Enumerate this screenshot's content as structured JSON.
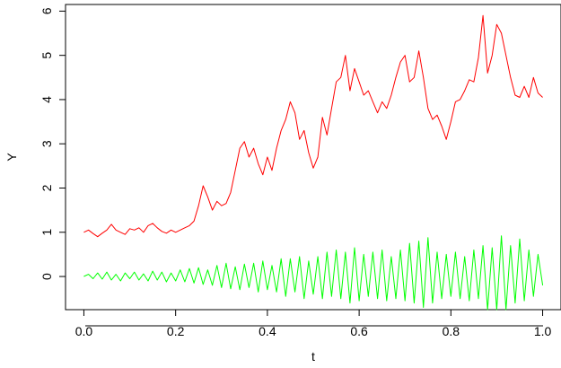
{
  "chart_data": {
    "type": "line",
    "xlabel": "t",
    "ylabel": "Y",
    "xlim": [
      -0.04,
      1.04
    ],
    "ylim": [
      -0.75,
      6.15
    ],
    "x_ticks": [
      0.0,
      0.2,
      0.4,
      0.6,
      0.8,
      1.0
    ],
    "x_tick_labels": [
      "0.0",
      "0.2",
      "0.4",
      "0.6",
      "0.8",
      "1.0"
    ],
    "y_ticks": [
      0,
      1,
      2,
      3,
      4,
      5,
      6
    ],
    "y_tick_labels": [
      "0",
      "1",
      "2",
      "3",
      "4",
      "5",
      "6"
    ],
    "grid": false,
    "series": [
      {
        "color": "#ff0000",
        "x": [
          0.0,
          0.01,
          0.02,
          0.03,
          0.04,
          0.05,
          0.06,
          0.07,
          0.08,
          0.09,
          0.1,
          0.11,
          0.12,
          0.13,
          0.14,
          0.15,
          0.16,
          0.17,
          0.18,
          0.19,
          0.2,
          0.21,
          0.22,
          0.23,
          0.24,
          0.25,
          0.26,
          0.27,
          0.28,
          0.29,
          0.3,
          0.31,
          0.32,
          0.33,
          0.34,
          0.35,
          0.36,
          0.37,
          0.38,
          0.39,
          0.4,
          0.41,
          0.42,
          0.43,
          0.44,
          0.45,
          0.46,
          0.47,
          0.48,
          0.49,
          0.5,
          0.51,
          0.52,
          0.53,
          0.54,
          0.55,
          0.56,
          0.57,
          0.58,
          0.59,
          0.6,
          0.61,
          0.62,
          0.63,
          0.64,
          0.65,
          0.66,
          0.67,
          0.68,
          0.69,
          0.7,
          0.71,
          0.72,
          0.73,
          0.74,
          0.75,
          0.76,
          0.77,
          0.78,
          0.79,
          0.8,
          0.81,
          0.82,
          0.83,
          0.84,
          0.85,
          0.86,
          0.87,
          0.88,
          0.89,
          0.9,
          0.91,
          0.92,
          0.93,
          0.94,
          0.95,
          0.96,
          0.97,
          0.98,
          0.99,
          1.0
        ],
        "values": [
          1.0,
          1.05,
          0.97,
          0.9,
          0.98,
          1.05,
          1.18,
          1.05,
          1.0,
          0.95,
          1.08,
          1.05,
          1.1,
          1.0,
          1.15,
          1.2,
          1.1,
          1.02,
          0.98,
          1.05,
          1.0,
          1.05,
          1.1,
          1.15,
          1.25,
          1.6,
          2.05,
          1.8,
          1.5,
          1.7,
          1.6,
          1.65,
          1.9,
          2.4,
          2.9,
          3.05,
          2.7,
          2.9,
          2.55,
          2.3,
          2.7,
          2.4,
          2.9,
          3.3,
          3.55,
          3.95,
          3.7,
          3.1,
          3.3,
          2.8,
          2.45,
          2.7,
          3.6,
          3.2,
          3.8,
          4.4,
          4.5,
          5.0,
          4.2,
          4.7,
          4.4,
          4.1,
          4.2,
          3.95,
          3.7,
          3.95,
          3.8,
          4.1,
          4.5,
          4.85,
          5.0,
          4.4,
          4.5,
          5.1,
          4.5,
          3.8,
          3.55,
          3.65,
          3.4,
          3.1,
          3.5,
          3.95,
          4.0,
          4.2,
          4.45,
          4.4,
          4.95,
          5.9,
          4.6,
          5.0,
          5.7,
          5.5,
          5.0,
          4.5,
          4.1,
          4.05,
          4.3,
          4.05,
          4.5,
          4.15,
          4.05
        ]
      },
      {
        "color": "#00ff00",
        "x": [
          0.0,
          0.01,
          0.02,
          0.03,
          0.04,
          0.05,
          0.06,
          0.07,
          0.08,
          0.09,
          0.1,
          0.11,
          0.12,
          0.13,
          0.14,
          0.15,
          0.16,
          0.17,
          0.18,
          0.19,
          0.2,
          0.21,
          0.22,
          0.23,
          0.24,
          0.25,
          0.26,
          0.27,
          0.28,
          0.29,
          0.3,
          0.31,
          0.32,
          0.33,
          0.34,
          0.35,
          0.36,
          0.37,
          0.38,
          0.39,
          0.4,
          0.41,
          0.42,
          0.43,
          0.44,
          0.45,
          0.46,
          0.47,
          0.48,
          0.49,
          0.5,
          0.51,
          0.52,
          0.53,
          0.54,
          0.55,
          0.56,
          0.57,
          0.58,
          0.59,
          0.6,
          0.61,
          0.62,
          0.63,
          0.64,
          0.65,
          0.66,
          0.67,
          0.68,
          0.69,
          0.7,
          0.71,
          0.72,
          0.73,
          0.74,
          0.75,
          0.76,
          0.77,
          0.78,
          0.79,
          0.8,
          0.81,
          0.82,
          0.83,
          0.84,
          0.85,
          0.86,
          0.87,
          0.88,
          0.89,
          0.9,
          0.91,
          0.92,
          0.93,
          0.94,
          0.95,
          0.96,
          0.97,
          0.98,
          0.99,
          1.0
        ],
        "values": [
          0.0,
          0.05,
          -0.05,
          0.08,
          -0.06,
          0.1,
          -0.08,
          0.05,
          -0.1,
          0.08,
          -0.05,
          0.1,
          -0.08,
          0.06,
          -0.1,
          0.12,
          -0.08,
          0.1,
          -0.12,
          0.08,
          -0.1,
          0.15,
          -0.12,
          0.18,
          -0.15,
          0.2,
          -0.18,
          0.15,
          -0.2,
          0.25,
          -0.25,
          0.3,
          -0.28,
          0.22,
          -0.3,
          0.28,
          -0.25,
          0.3,
          -0.35,
          0.35,
          -0.3,
          0.25,
          -0.35,
          0.4,
          -0.45,
          0.4,
          -0.35,
          0.45,
          -0.5,
          0.35,
          -0.4,
          0.45,
          -0.5,
          0.55,
          -0.45,
          0.6,
          -0.5,
          0.55,
          -0.6,
          0.65,
          -0.55,
          0.5,
          -0.45,
          0.55,
          -0.5,
          0.6,
          -0.55,
          0.45,
          -0.5,
          0.6,
          -0.55,
          0.75,
          -0.6,
          0.8,
          -0.7,
          0.88,
          -0.6,
          0.55,
          -0.5,
          0.5,
          -0.45,
          0.55,
          -0.5,
          0.45,
          -0.55,
          0.6,
          -0.5,
          0.7,
          -0.75,
          0.65,
          -0.75,
          0.92,
          -0.75,
          0.7,
          -0.6,
          0.85,
          -0.55,
          0.6,
          -0.45,
          0.5,
          -0.2
        ]
      }
    ]
  }
}
